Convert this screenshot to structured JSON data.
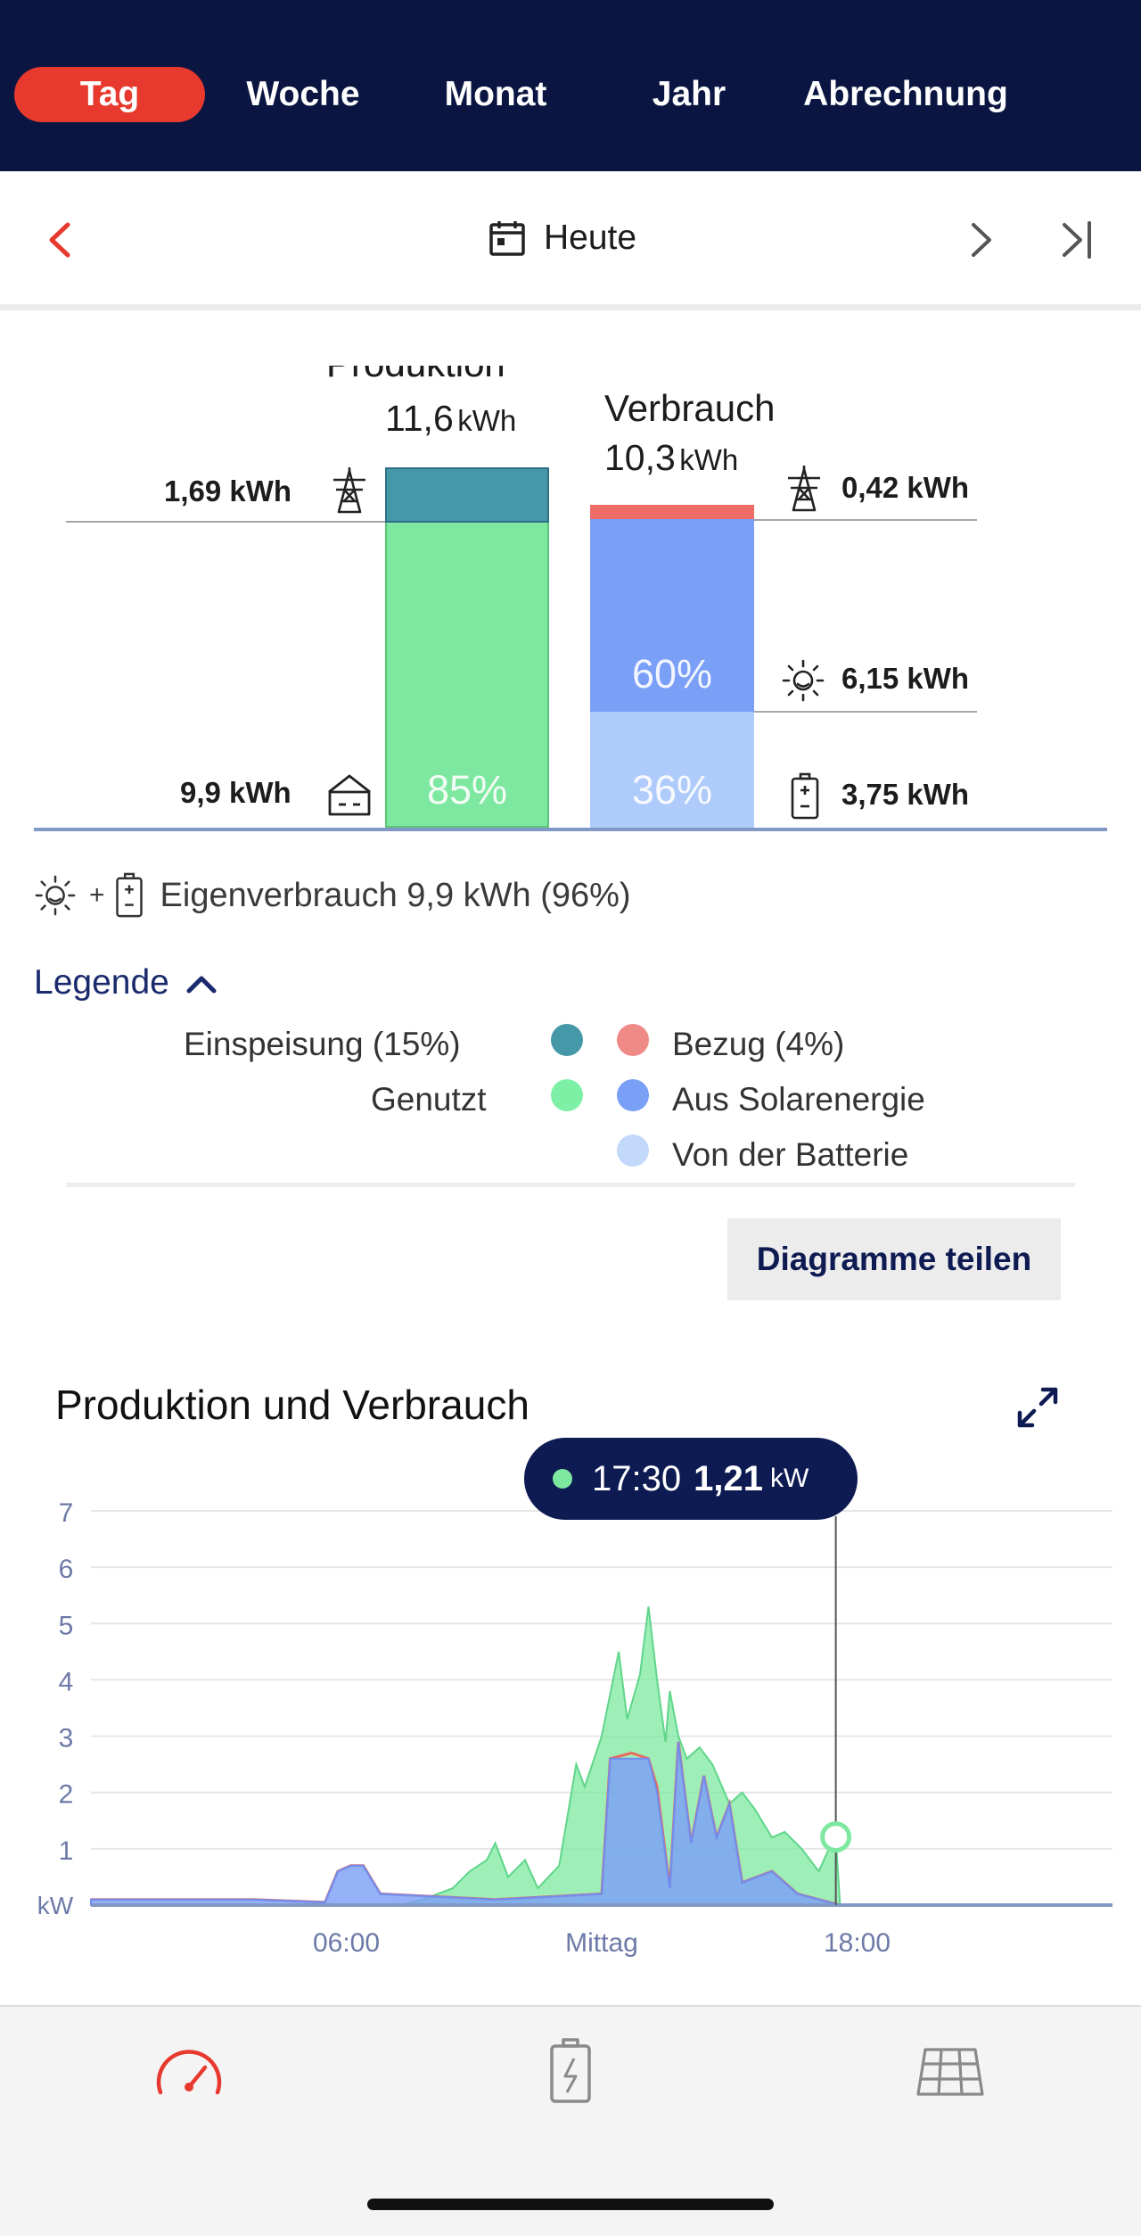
{
  "tabs": [
    {
      "label": "Tag",
      "active": true
    },
    {
      "label": "Woche",
      "active": false
    },
    {
      "label": "Monat",
      "active": false
    },
    {
      "label": "Jahr",
      "active": false
    },
    {
      "label": "Abrechnung",
      "active": false
    }
  ],
  "date_nav": {
    "label": "Heute"
  },
  "summary": {
    "production": {
      "title": "Produktion",
      "value": "11,6",
      "unit": "kWh"
    },
    "consumption": {
      "title": "Verbrauch",
      "value": "10,3",
      "unit": "kWh"
    },
    "feed_in": "1,69 kWh",
    "self_used": "9,9 kWh",
    "grid": "0,42 kWh",
    "solar": "6,15 kWh",
    "battery": "3,75 kWh",
    "pct_used": "85%",
    "pct_solar": "60%",
    "pct_battery": "36%",
    "self_consumption_text": "Eigenverbrauch 9,9 kWh (96%)",
    "plus": "+"
  },
  "legend": {
    "toggle_label": "Legende",
    "einspeisung": "Einspeisung (15%)",
    "genutzt": "Genutzt",
    "bezug": "Bezug (4%)",
    "solar": "Aus Solarenergie",
    "batterie": "Von der Batterie"
  },
  "share_button": "Diagramme teilen",
  "colors": {
    "einspeisung": "#4598a8",
    "genutzt": "#7ee8a0",
    "bezug": "#ef8a86",
    "solar": "#7a9ff7",
    "batterie": "#c3d9fb",
    "accent": "#e8392f",
    "navy": "#0a1641"
  },
  "chart_title": "Produktion und Verbrauch",
  "tooltip": {
    "time": "17:30",
    "value": "1,21",
    "unit": "kW"
  },
  "chart_data": {
    "type": "area",
    "title": "Produktion und Verbrauch",
    "xlabel": "",
    "ylabel": "kW",
    "x_ticks": [
      "06:00",
      "Mittag",
      "18:00"
    ],
    "y_ticks": [
      "1",
      "2",
      "3",
      "4",
      "5",
      "6",
      "7"
    ],
    "ylim": [
      0,
      7
    ],
    "xlim_hours": [
      0,
      24
    ],
    "grid": true,
    "series": [
      {
        "name": "Produktion",
        "color": "#7ee8a0",
        "points": [
          [
            0,
            0
          ],
          [
            7.3,
            0
          ],
          [
            7.8,
            0.1
          ],
          [
            8.5,
            0.3
          ],
          [
            8.9,
            0.6
          ],
          [
            9.3,
            0.8
          ],
          [
            9.5,
            1.1
          ],
          [
            9.8,
            0.5
          ],
          [
            10.2,
            0.8
          ],
          [
            10.5,
            0.3
          ],
          [
            11,
            0.7
          ],
          [
            11.4,
            2.5
          ],
          [
            11.6,
            2.1
          ],
          [
            12,
            3.0
          ],
          [
            12.4,
            4.5
          ],
          [
            12.6,
            3.3
          ],
          [
            12.9,
            4.1
          ],
          [
            13.1,
            5.3
          ],
          [
            13.3,
            4.0
          ],
          [
            13.5,
            2.9
          ],
          [
            13.6,
            3.8
          ],
          [
            13.8,
            3.0
          ],
          [
            14.0,
            2.6
          ],
          [
            14.3,
            2.8
          ],
          [
            14.6,
            2.5
          ],
          [
            15.0,
            1.8
          ],
          [
            15.3,
            2.0
          ],
          [
            15.6,
            1.7
          ],
          [
            16.0,
            1.2
          ],
          [
            16.3,
            1.3
          ],
          [
            16.7,
            1.0
          ],
          [
            17.1,
            0.6
          ],
          [
            17.4,
            1.1
          ],
          [
            17.5,
            1.21
          ],
          [
            17.6,
            0
          ],
          [
            24,
            0
          ]
        ]
      },
      {
        "name": "Verbrauch",
        "color": "#ef8a86",
        "points": [
          [
            0,
            0.1
          ],
          [
            3.8,
            0.1
          ],
          [
            5.5,
            0.05
          ],
          [
            5.8,
            0.6
          ],
          [
            6.1,
            0.7
          ],
          [
            6.4,
            0.7
          ],
          [
            6.8,
            0.2
          ],
          [
            9.5,
            0.1
          ],
          [
            12.0,
            0.2
          ],
          [
            12.2,
            2.6
          ],
          [
            12.7,
            2.7
          ],
          [
            13.1,
            2.6
          ],
          [
            13.3,
            2.1
          ],
          [
            13.6,
            0.3
          ],
          [
            13.8,
            2.9
          ],
          [
            14.1,
            1.1
          ],
          [
            14.4,
            2.3
          ],
          [
            14.7,
            1.2
          ],
          [
            15.0,
            1.8
          ],
          [
            15.3,
            0.4
          ],
          [
            16.0,
            0.6
          ],
          [
            16.6,
            0.2
          ],
          [
            17.6,
            0
          ],
          [
            24,
            0
          ]
        ]
      },
      {
        "name": "Eigenverbrauch",
        "color": "#7a9ff7",
        "points": [
          [
            0,
            0.1
          ],
          [
            3.8,
            0.1
          ],
          [
            5.5,
            0.05
          ],
          [
            5.8,
            0.6
          ],
          [
            6.1,
            0.7
          ],
          [
            6.4,
            0.7
          ],
          [
            6.8,
            0.2
          ],
          [
            9.5,
            0.1
          ],
          [
            12.0,
            0.2
          ],
          [
            12.2,
            2.6
          ],
          [
            12.7,
            2.6
          ],
          [
            13.1,
            2.6
          ],
          [
            13.3,
            2.0
          ],
          [
            13.6,
            0.3
          ],
          [
            13.8,
            2.9
          ],
          [
            14.1,
            1.1
          ],
          [
            14.4,
            2.3
          ],
          [
            14.7,
            1.2
          ],
          [
            15.0,
            1.8
          ],
          [
            15.3,
            0.4
          ],
          [
            16.0,
            0.6
          ],
          [
            16.6,
            0.2
          ],
          [
            17.6,
            0
          ],
          [
            24,
            0
          ]
        ]
      }
    ],
    "cursor_time_hours": 17.5
  }
}
